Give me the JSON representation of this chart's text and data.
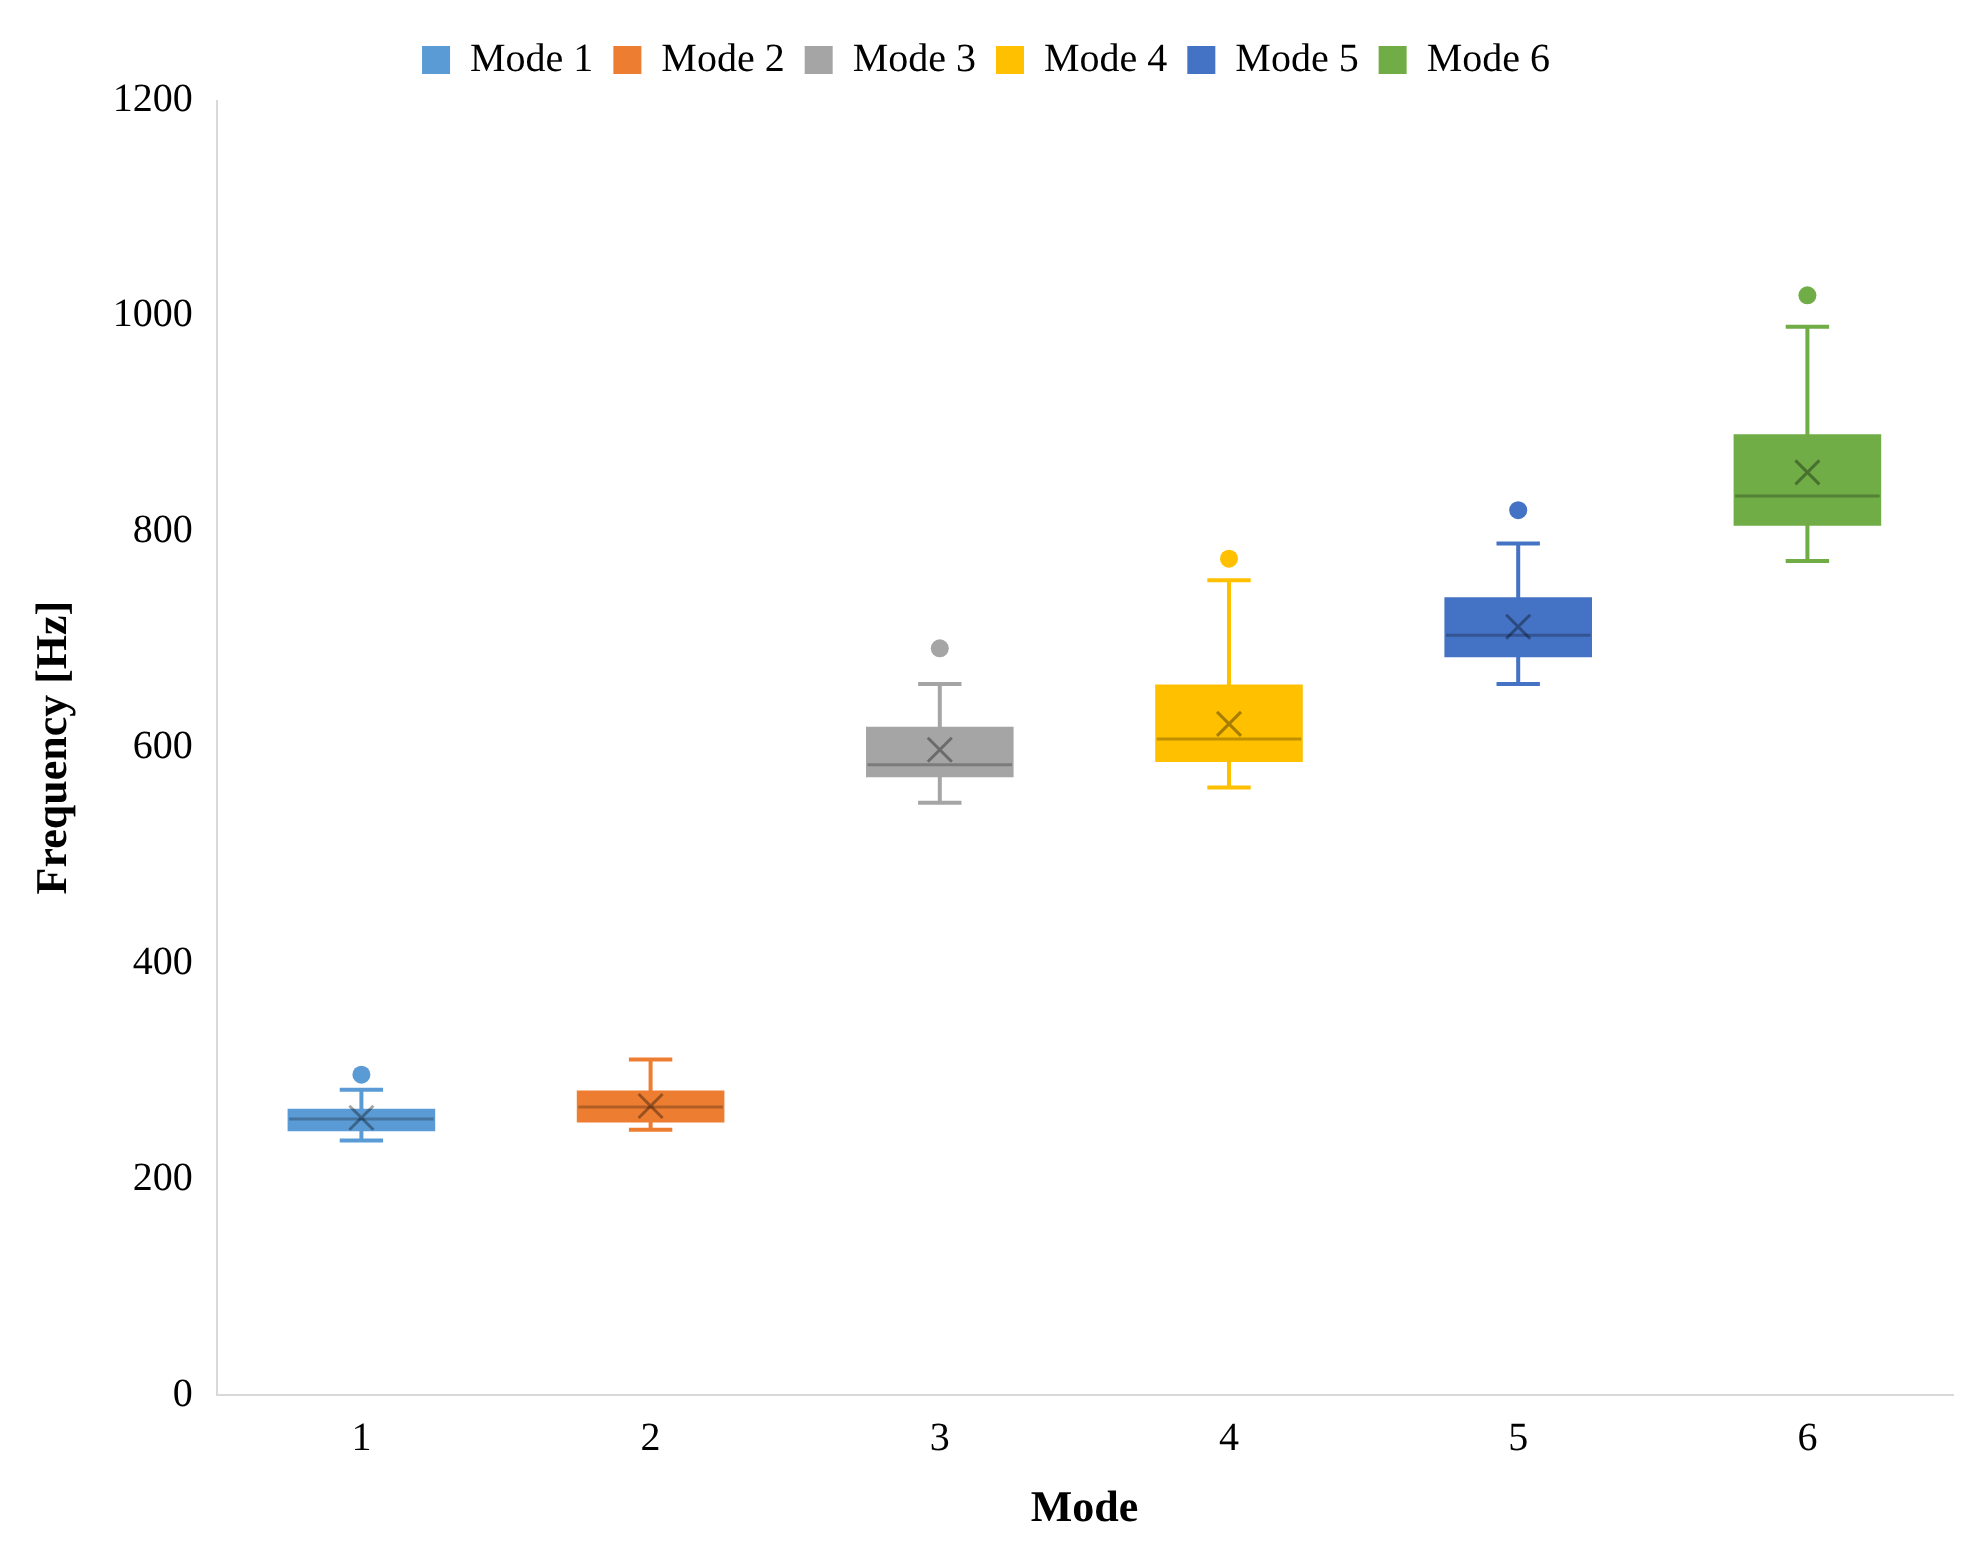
{
  "chart_data": {
    "type": "box",
    "xlabel": "Mode",
    "ylabel": "Frequency [Hz]",
    "categories": [
      "1",
      "2",
      "3",
      "4",
      "5",
      "6"
    ],
    "ylim": [
      0,
      1200
    ],
    "yticks": [
      0,
      200,
      400,
      600,
      800,
      1000,
      1200
    ],
    "grid": false,
    "legend": "top",
    "series": [
      {
        "name": "Mode 1",
        "color": "#5b9bd5",
        "boxes": [
          {
            "low": 236,
            "q1": 246,
            "median": 256,
            "q3": 264,
            "high": 283,
            "mean": 257,
            "outliers": [
              297
            ]
          },
          null,
          null,
          null,
          null,
          null
        ]
      },
      {
        "name": "Mode 2",
        "color": "#ed7d31",
        "boxes": [
          null,
          {
            "low": 246,
            "q1": 254,
            "median": 267,
            "q3": 281,
            "high": 311,
            "mean": 268
          },
          null,
          null,
          null,
          null
        ]
      },
      {
        "name": "Mode 3",
        "color": "#a5a5a5",
        "boxes": [
          null,
          null,
          {
            "low": 549,
            "q1": 574,
            "median": 584,
            "q3": 618,
            "high": 659,
            "mean": 598,
            "outliers": [
              692
            ]
          },
          null,
          null,
          null
        ]
      },
      {
        "name": "Mode 4",
        "color": "#ffc000",
        "boxes": [
          null,
          null,
          null,
          {
            "low": 563,
            "q1": 588,
            "median": 608,
            "q3": 657,
            "high": 755,
            "mean": 622,
            "outliers": [
              775
            ]
          },
          null,
          null
        ]
      },
      {
        "name": "Mode 5",
        "color": "#4472c4",
        "boxes": [
          null,
          null,
          null,
          null,
          {
            "low": 659,
            "q1": 685,
            "median": 704,
            "q3": 738,
            "high": 789,
            "mean": 712,
            "outliers": [
              820
            ]
          },
          null
        ]
      },
      {
        "name": "Mode 6",
        "color": "#70ad47",
        "boxes": [
          null,
          null,
          null,
          null,
          null,
          {
            "low": 773,
            "q1": 807,
            "median": 833,
            "q3": 889,
            "high": 990,
            "mean": 855,
            "outliers": [
              1019
            ]
          }
        ]
      }
    ]
  }
}
